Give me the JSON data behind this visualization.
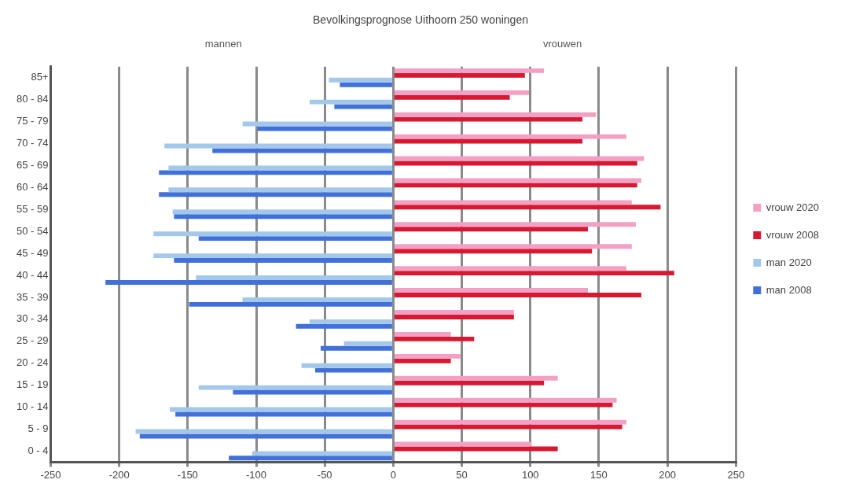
{
  "chart_data": {
    "type": "bar",
    "orientation": "horizontal",
    "title": "Bevolkingsprognose Uithoorn 250 woningen",
    "annotations": [
      "mannen",
      "vrouwen"
    ],
    "categories": [
      "85+",
      "80 - 84",
      "75 - 79",
      "70 - 74",
      "65 - 69",
      "60 - 64",
      "55 - 59",
      "50 - 54",
      "45 - 49",
      "40 - 44",
      "35 - 39",
      "30 - 34",
      "25 - 29",
      "20 - 24",
      "15 - 19",
      "10 - 14",
      "5 - 9",
      "0 - 4"
    ],
    "series": [
      {
        "name": "vrouw 2020",
        "color": "#f4a0c4",
        "values": [
          110,
          99,
          148,
          170,
          183,
          181,
          174,
          177,
          174,
          170,
          142,
          88,
          42,
          49,
          120,
          163,
          170,
          101
        ]
      },
      {
        "name": "vrouw 2008",
        "color": "#d81830",
        "values": [
          96,
          85,
          138,
          138,
          178,
          178,
          195,
          142,
          145,
          205,
          181,
          88,
          59,
          42,
          110,
          160,
          167,
          120
        ]
      },
      {
        "name": "man 2020",
        "color": "#a4c8ec",
        "values": [
          -47,
          -61,
          -110,
          -167,
          -164,
          -164,
          -161,
          -175,
          -175,
          -144,
          -110,
          -61,
          -36,
          -67,
          -142,
          -163,
          -188,
          -103
        ]
      },
      {
        "name": "man 2008",
        "color": "#4070d8",
        "values": [
          -39,
          -43,
          -99,
          -132,
          -171,
          -171,
          -160,
          -142,
          -160,
          -210,
          -149,
          -71,
          -53,
          -57,
          -117,
          -159,
          -185,
          -120
        ]
      }
    ],
    "xlim": [
      -250,
      250
    ],
    "xticks": [
      -250,
      -200,
      -150,
      -100,
      -50,
      0,
      50,
      100,
      150,
      200,
      250
    ],
    "grid": "x",
    "legend": "right"
  }
}
